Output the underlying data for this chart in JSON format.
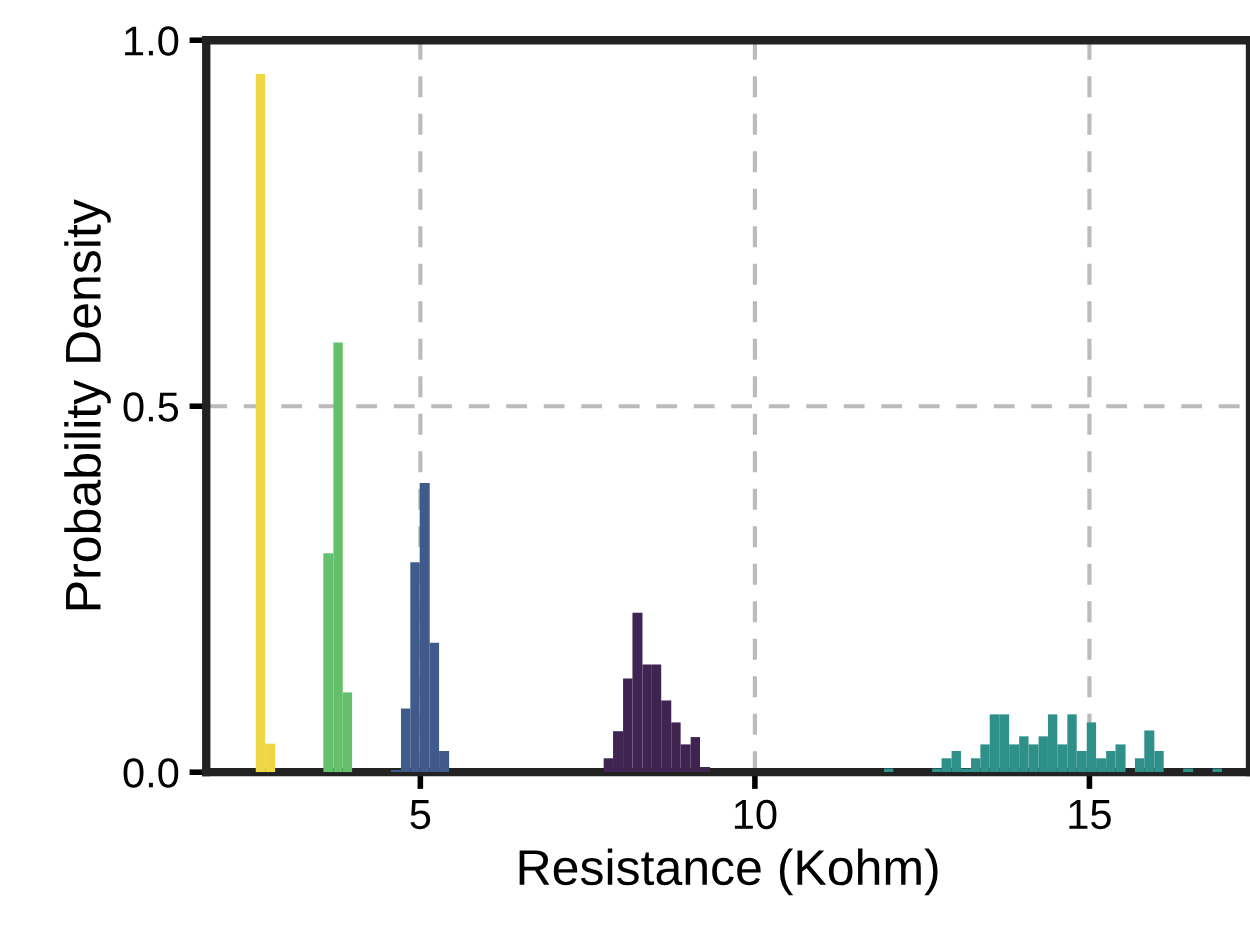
{
  "chart_data": {
    "type": "histogram",
    "xlabel": "Resistance (Kohm)",
    "ylabel": "Probability Density",
    "xlim": [
      1.8,
      17.4
    ],
    "ylim": [
      0,
      1.0
    ],
    "xticks": [
      5,
      10,
      15
    ],
    "yticks": [
      {
        "value": 0,
        "label": "0.0"
      },
      {
        "value": 0.5,
        "label": "0.5"
      },
      {
        "value": 1.0,
        "label": "1.0"
      }
    ],
    "grid": true,
    "bins": [
      2.54,
      2.68,
      2.83,
      3.55,
      3.7,
      3.84,
      3.98,
      4.56,
      4.71,
      4.85,
      4.99,
      5.14,
      5.28,
      5.43,
      7.74,
      7.88,
      8.03,
      8.17,
      8.32,
      8.46,
      8.6,
      8.75,
      8.89,
      9.04,
      9.18,
      9.33,
      11.93,
      12.07,
      12.65,
      12.79,
      12.94,
      13.08,
      13.23,
      13.37,
      13.51,
      13.66,
      13.8,
      13.95,
      14.09,
      14.24,
      14.38,
      14.52,
      14.67,
      14.81,
      14.96,
      15.1,
      15.25,
      15.39,
      15.54,
      15.68,
      15.82,
      15.97,
      16.11,
      16.4,
      16.55,
      16.84,
      16.98
    ],
    "series": [
      {
        "color": "#efd645",
        "values": [
          0.954,
          0.039,
          null,
          null,
          null,
          null,
          null,
          null,
          null,
          null,
          null,
          null,
          null,
          null,
          null,
          null,
          null,
          null,
          null,
          null,
          null,
          null,
          null,
          null,
          null,
          null,
          null,
          null,
          null,
          null,
          null,
          null,
          null,
          null,
          null,
          null,
          null,
          null,
          null,
          null,
          null,
          null,
          null,
          null,
          null,
          null,
          null,
          null,
          null,
          null,
          null,
          null,
          null,
          null,
          null,
          null
        ]
      },
      {
        "color": "#64c06c",
        "values": [
          null,
          null,
          null,
          0.299,
          0.587,
          0.109,
          null,
          null,
          null,
          null,
          null,
          null,
          null,
          null,
          null,
          null,
          null,
          null,
          null,
          null,
          null,
          null,
          null,
          null,
          null,
          null,
          null,
          null,
          null,
          null,
          null,
          null,
          null,
          null,
          null,
          null,
          null,
          null,
          null,
          null,
          null,
          null,
          null,
          null,
          null,
          null,
          null,
          null,
          null,
          null,
          null,
          null,
          null,
          null,
          null,
          null
        ]
      },
      {
        "color": "#405a8c",
        "values": [
          null,
          null,
          null,
          null,
          null,
          null,
          null,
          0.003,
          0.087,
          0.287,
          0.395,
          0.177,
          0.029,
          null,
          null,
          null,
          null,
          null,
          null,
          null,
          null,
          null,
          null,
          null,
          null,
          null,
          null,
          null,
          null,
          null,
          null,
          null,
          null,
          null,
          null,
          null,
          null,
          null,
          null,
          null,
          null,
          null,
          null,
          null,
          null,
          null,
          null,
          null,
          null,
          null,
          null,
          null,
          null,
          null,
          null,
          null
        ]
      },
      {
        "color": "#3f2350",
        "values": [
          null,
          null,
          null,
          null,
          null,
          null,
          null,
          null,
          null,
          null,
          null,
          null,
          null,
          null,
          0.019,
          0.056,
          0.128,
          0.218,
          0.147,
          0.147,
          0.098,
          0.068,
          0.038,
          0.048,
          0.007,
          null,
          null,
          null,
          null,
          null,
          null,
          null,
          null,
          null,
          null,
          null,
          null,
          null,
          null,
          null,
          null,
          null,
          null,
          null,
          null,
          null,
          null,
          null,
          null,
          null,
          null,
          null,
          null,
          null,
          null,
          null
        ]
      },
      {
        "color": "#2e9089",
        "values": [
          null,
          null,
          null,
          null,
          null,
          null,
          null,
          null,
          null,
          null,
          null,
          null,
          null,
          null,
          null,
          null,
          null,
          null,
          null,
          null,
          null,
          null,
          null,
          null,
          null,
          null,
          0.005,
          null,
          0.005,
          0.019,
          0.029,
          0.005,
          0.019,
          0.038,
          0.079,
          0.079,
          0.038,
          0.049,
          0.038,
          0.049,
          0.079,
          0.038,
          0.079,
          0.029,
          0.068,
          0.019,
          0.029,
          0.038,
          null,
          0.019,
          0.057,
          0.029,
          null,
          0.005,
          null,
          0.005
        ]
      }
    ]
  }
}
